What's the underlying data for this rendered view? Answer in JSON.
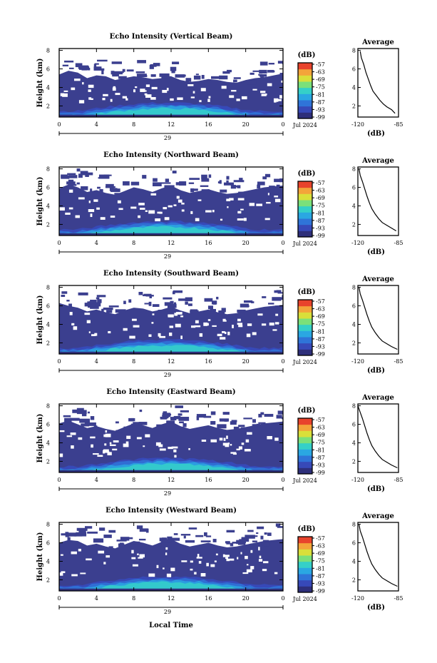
{
  "figure": {
    "xlabel": "Local Time"
  },
  "palette": {
    "background": "#ffffff",
    "echo_fill": "#3b3f8f",
    "colorbar": [
      "#2e2f7a",
      "#3749b8",
      "#2f74d8",
      "#2aa7e2",
      "#35d0c8",
      "#7be07a",
      "#d9df3a",
      "#f3a43a",
      "#e8432c"
    ]
  },
  "chart_data": [
    {
      "type": "heatmap",
      "title": "Echo Intensity (Vertical Beam)",
      "ylabel": "Height (km)",
      "x_ticks": [
        "0",
        "4",
        "8",
        "12",
        "16",
        "20",
        "0"
      ],
      "y_ticks": [
        "2",
        "4",
        "6",
        "8"
      ],
      "xlim": [
        0,
        24
      ],
      "ylim": [
        0.8,
        8.2
      ],
      "date_label": "29",
      "date_suffix": "Jul 2024",
      "colorbar": {
        "unit": "(dB)",
        "labels": [
          "-57",
          "-63",
          "-69",
          "-75",
          "-81",
          "-87",
          "-93",
          "-99"
        ]
      },
      "echo_top_km": [
        5.4,
        5.8,
        5.6,
        5.0,
        5.3,
        5.2,
        4.8,
        5.0,
        5.2,
        5.1,
        4.9,
        5.0,
        5.2,
        4.8,
        4.6,
        4.7,
        4.9,
        4.8,
        4.6,
        4.5,
        4.8,
        5.0,
        5.1,
        5.3,
        5.5
      ],
      "profile": {
        "title": "Average",
        "xlabel": "(dB)",
        "x_ticks": [
          "-120",
          "-85"
        ],
        "xlim": [
          -120,
          -85
        ],
        "y_ticks": [
          "2",
          "4",
          "6",
          "8"
        ],
        "ylim": [
          0.8,
          8.2
        ],
        "x": [
          -118,
          -117,
          -115,
          -113,
          -111,
          -109,
          -107,
          -104,
          -101,
          -98,
          -95,
          -91,
          -88
        ],
        "y": [
          7.9,
          7.2,
          6.5,
          5.6,
          4.9,
          4.2,
          3.6,
          3.1,
          2.6,
          2.2,
          1.9,
          1.6,
          1.2
        ]
      }
    },
    {
      "type": "heatmap",
      "title": "Echo Intensity (Northward Beam)",
      "ylabel": "Height (km)",
      "x_ticks": [
        "0",
        "4",
        "8",
        "12",
        "16",
        "20",
        "0"
      ],
      "y_ticks": [
        "2",
        "4",
        "6",
        "8"
      ],
      "xlim": [
        0,
        24
      ],
      "ylim": [
        0.8,
        8.2
      ],
      "date_label": "29",
      "date_suffix": "Jul 2024",
      "colorbar": {
        "unit": "(dB)",
        "labels": [
          "-57",
          "-63",
          "-69",
          "-75",
          "-81",
          "-87",
          "-93",
          "-99"
        ]
      },
      "echo_top_km": [
        5.9,
        6.3,
        6.0,
        5.5,
        5.7,
        5.4,
        5.2,
        5.6,
        6.0,
        5.8,
        5.5,
        5.9,
        6.2,
        5.7,
        5.4,
        5.6,
        5.8,
        5.5,
        5.3,
        5.4,
        5.6,
        5.8,
        6.0,
        6.1,
        6.2
      ],
      "profile": {
        "title": "Average",
        "xlabel": "(dB)",
        "x_ticks": [
          "-120",
          "-85"
        ],
        "xlim": [
          -120,
          -85
        ],
        "y_ticks": [
          "2",
          "4",
          "6",
          "8"
        ],
        "ylim": [
          0.8,
          8.2
        ],
        "x": [
          -119,
          -118,
          -116,
          -114,
          -112,
          -110,
          -108,
          -105,
          -102,
          -99,
          -95,
          -91,
          -87
        ],
        "y": [
          8.0,
          7.3,
          6.6,
          5.8,
          5.0,
          4.3,
          3.7,
          3.1,
          2.6,
          2.2,
          1.9,
          1.6,
          1.3
        ]
      }
    },
    {
      "type": "heatmap",
      "title": "Echo Intensity (Southward Beam)",
      "ylabel": "Height (km)",
      "x_ticks": [
        "0",
        "4",
        "8",
        "12",
        "16",
        "20",
        "0"
      ],
      "y_ticks": [
        "2",
        "4",
        "6",
        "8"
      ],
      "xlim": [
        0,
        24
      ],
      "ylim": [
        0.8,
        8.2
      ],
      "date_label": "29",
      "date_suffix": "Jul 2024",
      "colorbar": {
        "unit": "(dB)",
        "labels": [
          "-57",
          "-63",
          "-69",
          "-75",
          "-81",
          "-87",
          "-93",
          "-99"
        ]
      },
      "echo_top_km": [
        6.3,
        6.0,
        5.8,
        5.4,
        5.6,
        5.3,
        5.1,
        5.5,
        5.8,
        5.7,
        5.4,
        5.6,
        5.9,
        5.5,
        5.2,
        5.4,
        5.6,
        5.3,
        5.1,
        5.2,
        5.5,
        5.7,
        5.9,
        6.0,
        6.1
      ],
      "profile": {
        "title": "Average",
        "xlabel": "(dB)",
        "x_ticks": [
          "-120",
          "-85"
        ],
        "xlim": [
          -120,
          -85
        ],
        "y_ticks": [
          "2",
          "4",
          "6",
          "8"
        ],
        "ylim": [
          0.8,
          8.2
        ],
        "x": [
          -119,
          -118,
          -116,
          -114,
          -112,
          -110,
          -108,
          -105,
          -102,
          -99,
          -95,
          -91,
          -86
        ],
        "y": [
          8.0,
          7.3,
          6.6,
          5.8,
          5.0,
          4.3,
          3.7,
          3.1,
          2.6,
          2.2,
          1.9,
          1.6,
          1.3
        ]
      }
    },
    {
      "type": "heatmap",
      "title": "Echo Intensity (Eastward Beam)",
      "ylabel": "Height (km)",
      "x_ticks": [
        "0",
        "4",
        "8",
        "12",
        "16",
        "20",
        "0"
      ],
      "y_ticks": [
        "2",
        "4",
        "6",
        "8"
      ],
      "xlim": [
        0,
        24
      ],
      "ylim": [
        0.8,
        8.2
      ],
      "date_label": "29",
      "date_suffix": "Jul 2024",
      "colorbar": {
        "unit": "(dB)",
        "labels": [
          "-57",
          "-63",
          "-69",
          "-75",
          "-81",
          "-87",
          "-93",
          "-99"
        ]
      },
      "echo_top_km": [
        6.1,
        6.4,
        6.0,
        5.6,
        5.8,
        5.5,
        5.3,
        5.7,
        6.1,
        5.9,
        5.6,
        6.0,
        6.3,
        5.8,
        5.5,
        5.7,
        5.9,
        5.6,
        5.4,
        5.5,
        5.7,
        5.9,
        6.1,
        6.2,
        6.3
      ],
      "profile": {
        "title": "Average",
        "xlabel": "(dB)",
        "x_ticks": [
          "-120",
          "-85"
        ],
        "xlim": [
          -120,
          -85
        ],
        "y_ticks": [
          "2",
          "4",
          "6",
          "8"
        ],
        "ylim": [
          0.8,
          8.2
        ],
        "x": [
          -120,
          -118,
          -116,
          -114,
          -112,
          -110,
          -108,
          -105,
          -102,
          -99,
          -95,
          -91,
          -86
        ],
        "y": [
          8.0,
          7.3,
          6.6,
          5.8,
          5.0,
          4.3,
          3.7,
          3.1,
          2.6,
          2.2,
          1.9,
          1.6,
          1.3
        ]
      }
    },
    {
      "type": "heatmap",
      "title": "Echo Intensity (Westward Beam)",
      "ylabel": "Height (km)",
      "x_ticks": [
        "0",
        "4",
        "8",
        "12",
        "16",
        "20",
        "0"
      ],
      "y_ticks": [
        "2",
        "4",
        "6",
        "8"
      ],
      "xlim": [
        0,
        24
      ],
      "ylim": [
        0.8,
        8.2
      ],
      "date_label": "29",
      "date_suffix": "Jul 2024",
      "colorbar": {
        "unit": "(dB)",
        "labels": [
          "-57",
          "-63",
          "-69",
          "-75",
          "-81",
          "-87",
          "-93",
          "-99"
        ]
      },
      "echo_top_km": [
        6.0,
        6.3,
        6.2,
        5.7,
        5.9,
        5.6,
        5.4,
        5.8,
        6.2,
        6.0,
        5.7,
        6.1,
        6.4,
        5.9,
        5.6,
        5.8,
        6.0,
        5.7,
        5.5,
        5.6,
        5.8,
        6.0,
        6.2,
        6.3,
        6.4
      ],
      "profile": {
        "title": "Average",
        "xlabel": "(dB)",
        "x_ticks": [
          "-120",
          "-85"
        ],
        "xlim": [
          -120,
          -85
        ],
        "y_ticks": [
          "2",
          "4",
          "6",
          "8"
        ],
        "ylim": [
          0.8,
          8.2
        ],
        "x": [
          -119,
          -118,
          -116,
          -114,
          -112,
          -110,
          -108,
          -105,
          -102,
          -99,
          -95,
          -91,
          -86
        ],
        "y": [
          8.0,
          7.3,
          6.6,
          5.8,
          5.0,
          4.3,
          3.7,
          3.1,
          2.6,
          2.2,
          1.9,
          1.6,
          1.3
        ]
      }
    }
  ]
}
